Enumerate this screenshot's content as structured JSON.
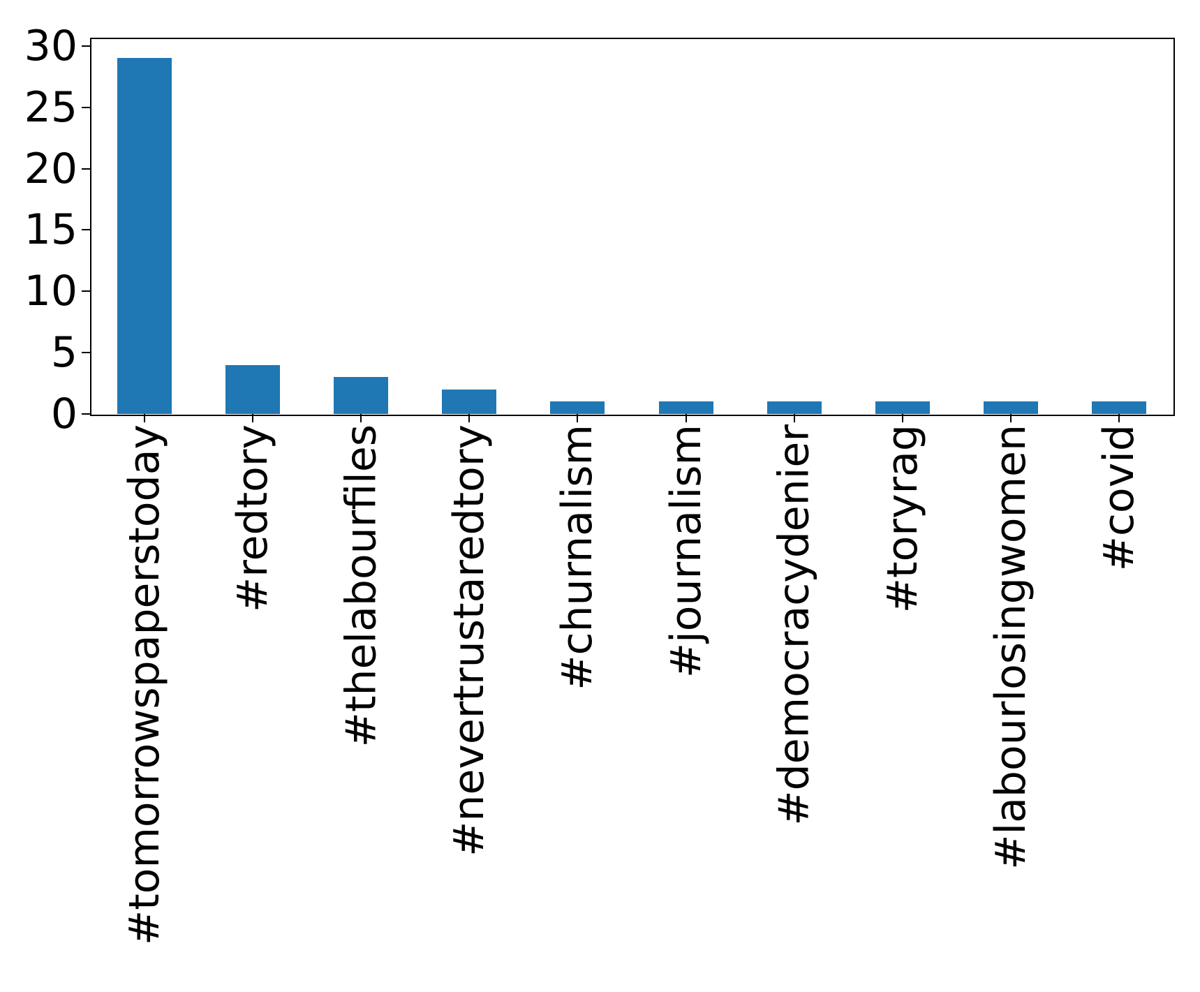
{
  "chart_data": {
    "type": "bar",
    "title": "",
    "xlabel": "",
    "ylabel": "",
    "categories": [
      "#tomorrowspaperstoday",
      "#redtory",
      "#thelabourfiles",
      "#nevertrustaredtory",
      "#churnalism",
      "#journalism",
      "#democracydenier",
      "#toryrag",
      "#labourlosingwomen",
      "#covid"
    ],
    "values": [
      29,
      4,
      3,
      2,
      1,
      1,
      1,
      1,
      1,
      1
    ],
    "yticks": [
      0,
      5,
      10,
      15,
      20,
      25,
      30
    ],
    "ylim": [
      0,
      30.45
    ],
    "grid": false,
    "legend_position": "none",
    "bar_color": "#1f77b4",
    "axis_color": "#000000",
    "tick_label_color": "#000000",
    "x_tick_rotation_degrees": 90
  }
}
